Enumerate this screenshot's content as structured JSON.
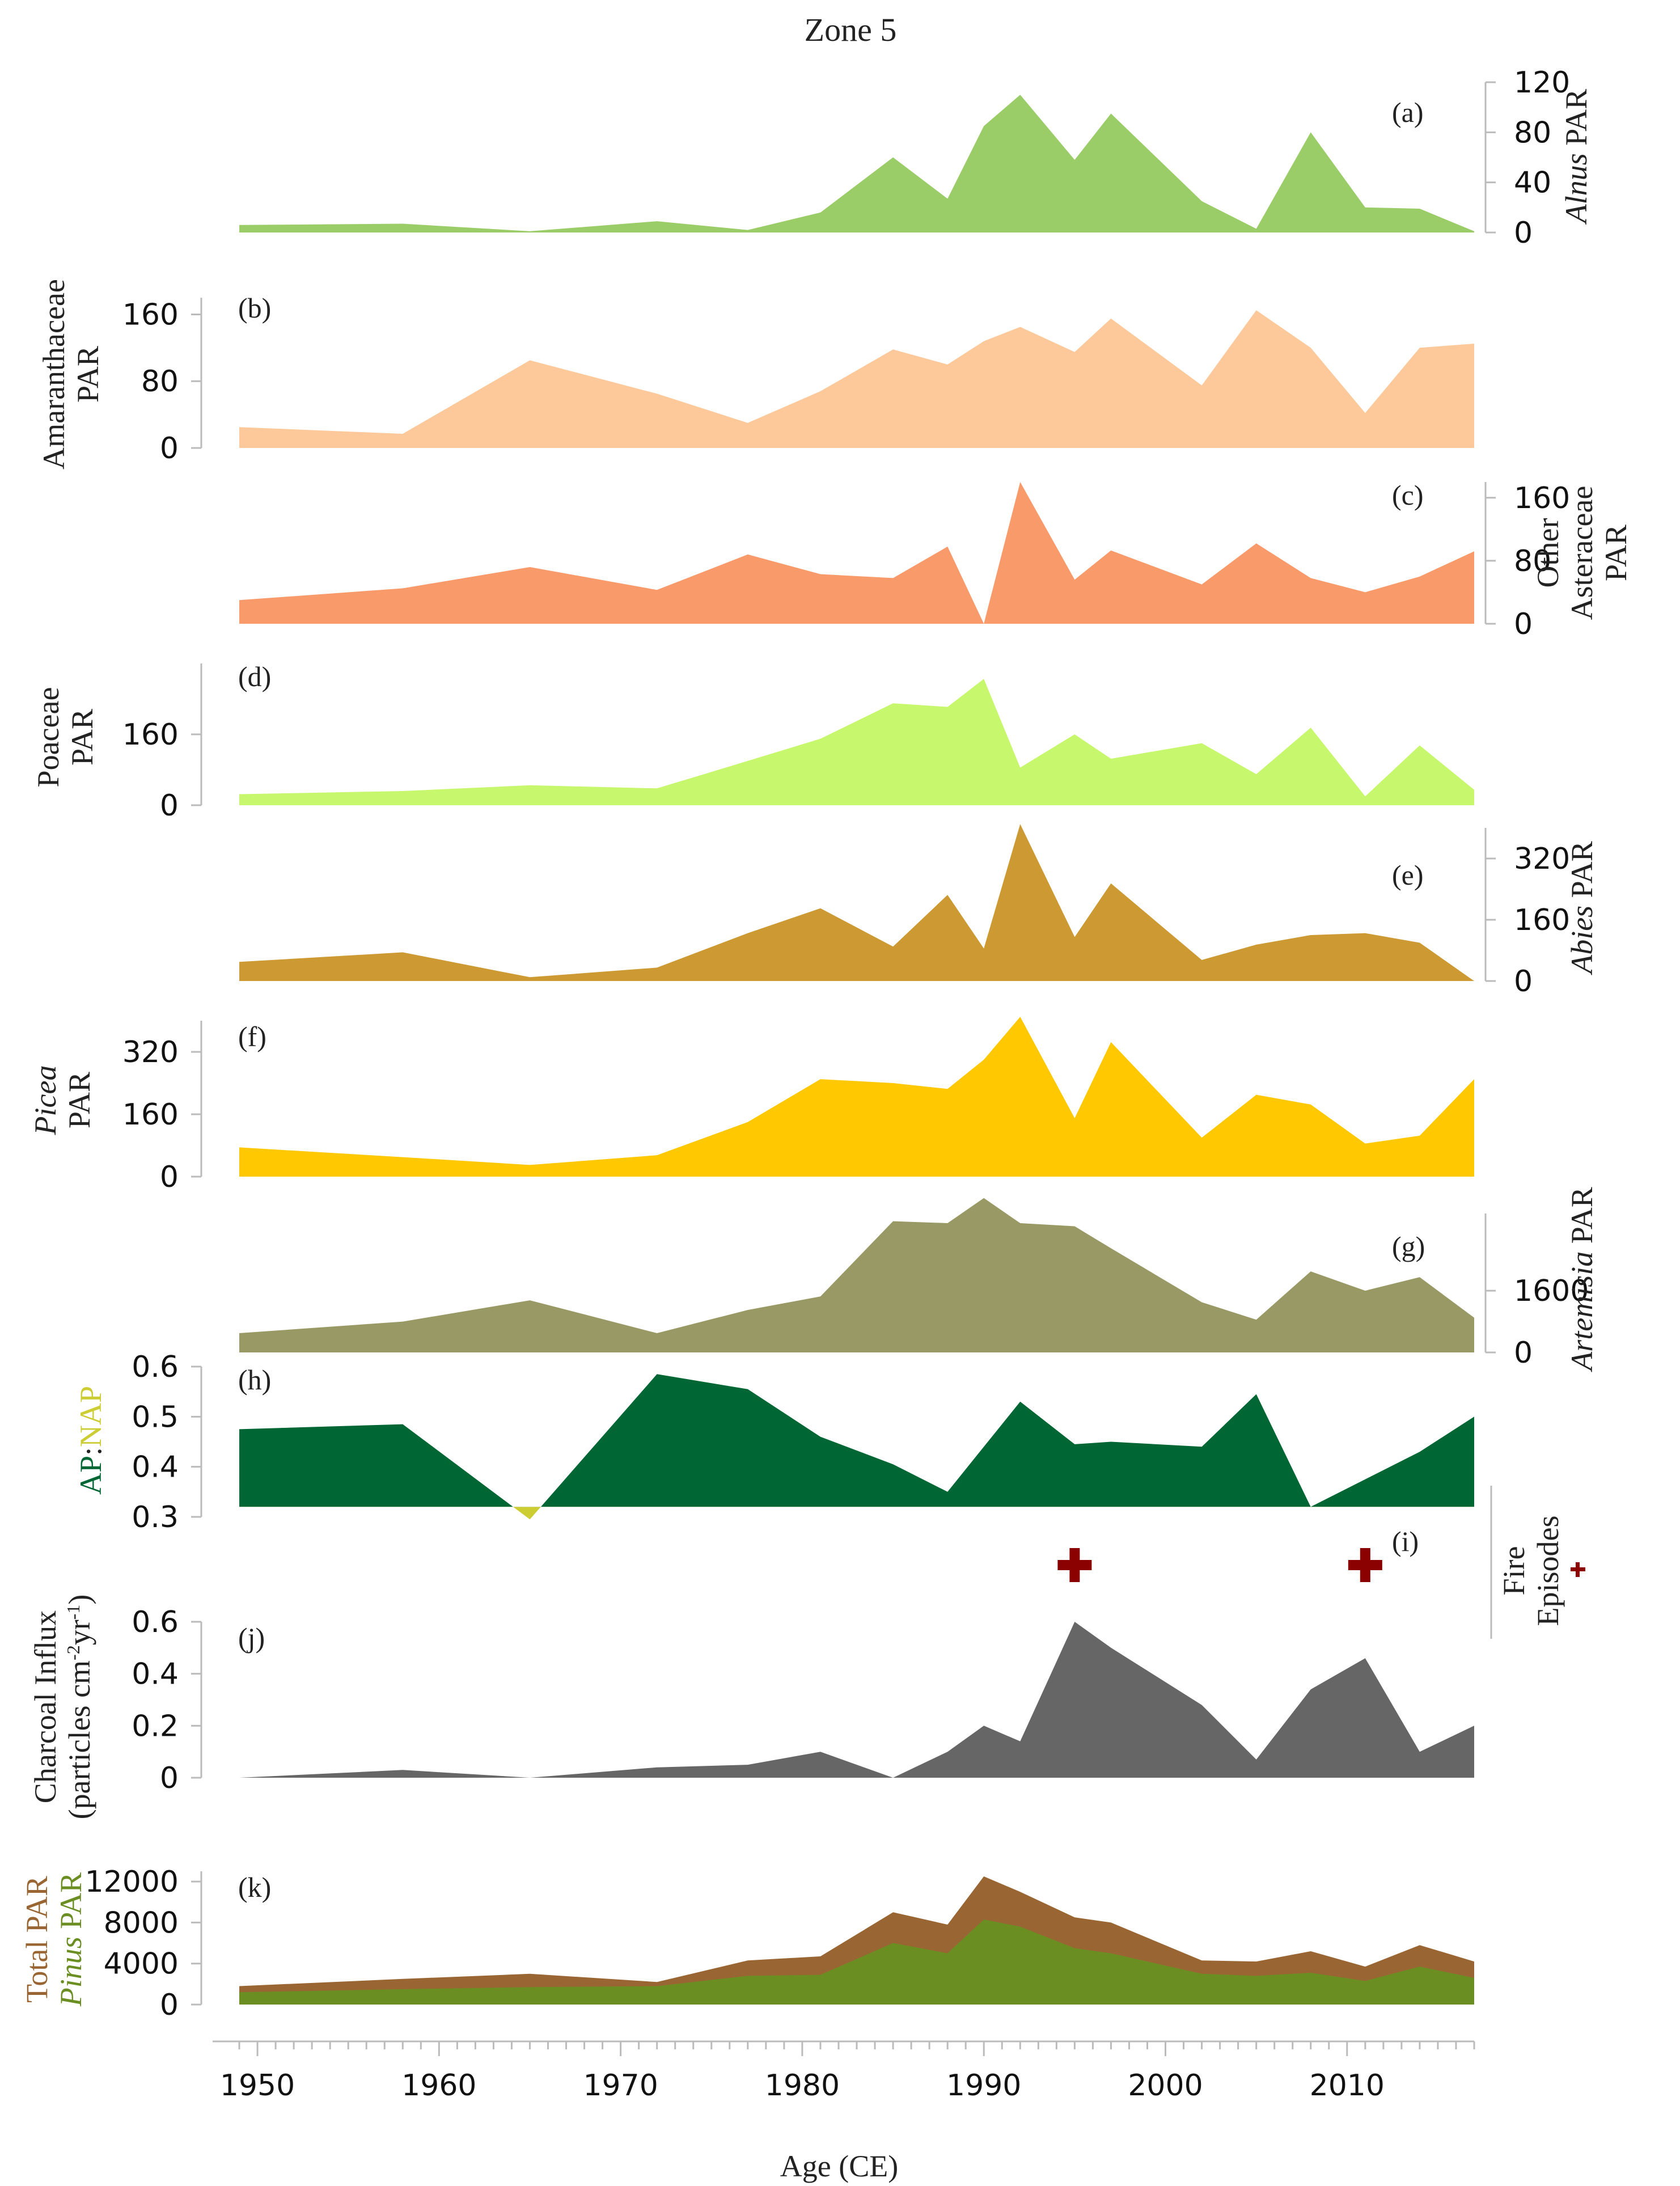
{
  "title": "Zone 5",
  "chart_data": {
    "type": "area",
    "xlabel": "Age (CE)",
    "xlim": [
      1948,
      2017
    ],
    "xticks": [
      1950,
      1960,
      1970,
      1980,
      1990,
      2000,
      2010
    ],
    "x": [
      1949,
      1958,
      1965,
      1972,
      1977,
      1981,
      1985,
      1988,
      1990,
      1992,
      1995,
      1997,
      2002,
      2005,
      2008,
      2011,
      2014,
      2017
    ],
    "panels": [
      {
        "id": "a",
        "tag": "(a)",
        "label_parts": [
          {
            "t": "Alnus",
            "i": true
          },
          {
            "t": " PAR",
            "i": false
          }
        ],
        "ylim": [
          0,
          120
        ],
        "yticks": [
          0,
          40,
          80,
          120
        ],
        "color": "#9ACD68",
        "values": [
          6,
          7,
          1,
          9,
          2,
          16,
          60,
          27,
          85,
          110,
          58,
          95,
          25,
          3,
          80,
          20,
          19,
          1
        ]
      },
      {
        "id": "b",
        "tag": "(b)",
        "label_parts": [
          {
            "t": "Amaranthaceae",
            "i": false
          },
          {
            "t": "PAR",
            "i": false
          }
        ],
        "ylim": [
          0,
          180
        ],
        "yticks": [
          0,
          80,
          160
        ],
        "color": "#FDC99A",
        "values": [
          25,
          17,
          105,
          65,
          30,
          68,
          118,
          100,
          128,
          145,
          115,
          155,
          75,
          165,
          120,
          42,
          120,
          125
        ]
      },
      {
        "id": "c",
        "tag": "(c)",
        "label_parts": [
          {
            "t": "Other",
            "i": false
          },
          {
            "t": "Asteraceae",
            "i": false
          },
          {
            "t": "PAR",
            "i": false
          }
        ],
        "ylim": [
          0,
          180
        ],
        "yticks": [
          0,
          80,
          160
        ],
        "color": "#F99A6B",
        "values": [
          30,
          45,
          72,
          43,
          88,
          63,
          58,
          98,
          0,
          180,
          56,
          93,
          50,
          102,
          58,
          40,
          60,
          92
        ]
      },
      {
        "id": "d",
        "tag": "(d)",
        "label_parts": [
          {
            "t": "Poaceae",
            "i": false
          },
          {
            "t": "PAR",
            "i": false
          }
        ],
        "ylim": [
          0,
          320
        ],
        "yticks": [
          0,
          160
        ],
        "color": "#C7F76C",
        "values": [
          25,
          32,
          45,
          38,
          100,
          150,
          230,
          222,
          285,
          85,
          160,
          105,
          140,
          70,
          175,
          20,
          135,
          35
        ]
      },
      {
        "id": "e",
        "tag": "(e)",
        "label_parts": [
          {
            "t": "Abies",
            "i": true
          },
          {
            "t": " PAR",
            "i": false
          }
        ],
        "ylim": [
          0,
          400
        ],
        "yticks": [
          0,
          160,
          320
        ],
        "color": "#CC9933",
        "values": [
          50,
          75,
          10,
          35,
          125,
          190,
          90,
          225,
          85,
          410,
          115,
          255,
          55,
          95,
          120,
          125,
          100,
          0
        ]
      },
      {
        "id": "f",
        "tag": "(f)",
        "label_parts": [
          {
            "t": "Picea",
            "i": true
          },
          {
            "t": "PAR",
            "i": false
          }
        ],
        "ylim": [
          0,
          400
        ],
        "yticks": [
          0,
          160,
          320
        ],
        "color": "#FFC800",
        "values": [
          75,
          50,
          30,
          55,
          140,
          250,
          240,
          225,
          300,
          410,
          150,
          345,
          100,
          210,
          185,
          85,
          105,
          250
        ]
      },
      {
        "id": "g",
        "tag": "(g)",
        "label_parts": [
          {
            "t": "Artemisia",
            "i": true
          },
          {
            "t": " PAR",
            "i": false
          }
        ],
        "ylim": [
          0,
          3600
        ],
        "yticks": [
          0,
          1600
        ],
        "color": "#999966",
        "values": [
          500,
          800,
          1350,
          500,
          1100,
          1450,
          3400,
          3350,
          4000,
          3350,
          3270,
          2700,
          1300,
          850,
          2100,
          1600,
          1950,
          900
        ]
      },
      {
        "id": "h",
        "tag": "(h)",
        "label_parts": [
          {
            "t": "AP",
            "i": false,
            "c": "#006633"
          },
          {
            "t": ":",
            "i": false,
            "c": "#222222"
          },
          {
            "t": "NAP",
            "i": false,
            "c": "#CCCC33"
          }
        ],
        "ylim": [
          0.3,
          0.6
        ],
        "yticks": [
          0.3,
          0.4,
          0.5,
          0.6
        ],
        "baseline": 0.32,
        "color_above": "#006633",
        "color_below": "#CCCC33",
        "values": [
          0.475,
          0.485,
          0.295,
          0.585,
          0.555,
          0.46,
          0.405,
          0.35,
          0.44,
          0.53,
          0.445,
          0.45,
          0.44,
          0.545,
          0.32,
          0.375,
          0.43,
          0.5
        ]
      },
      {
        "id": "i",
        "tag": "(i)",
        "label_parts": [
          {
            "t": "Fire",
            "i": false
          },
          {
            "t": "Episodes",
            "i": false
          }
        ],
        "type": "markers",
        "marker": "+",
        "color": "#8B0000",
        "events": [
          1995,
          2011
        ]
      },
      {
        "id": "j",
        "tag": "(j)",
        "label_parts": [
          {
            "t": "Charcoal Influx",
            "i": false
          },
          {
            "t": "(particles cm-2yr-1)",
            "i": false
          }
        ],
        "ylim": [
          0,
          0.6
        ],
        "yticks": [
          0,
          0.2,
          0.4,
          0.6
        ],
        "color": "#666666",
        "values": [
          0,
          0.03,
          0,
          0.04,
          0.05,
          0.1,
          0,
          0.1,
          0.2,
          0.14,
          0.6,
          0.5,
          0.28,
          0.07,
          0.34,
          0.46,
          0.1,
          0.2
        ]
      },
      {
        "id": "k",
        "tag": "(k)",
        "label_parts": [
          {
            "t": "Total PAR",
            "i": false,
            "c": "#996633"
          },
          {
            "t": "Pinus",
            "i": true,
            "c": "#6B8E23"
          },
          {
            "t": " PAR",
            "i": false,
            "c": "#6B8E23"
          }
        ],
        "ylim": [
          0,
          13000
        ],
        "yticks": [
          0,
          4000,
          8000,
          12000
        ],
        "series": [
          {
            "name": "Total PAR",
            "color": "#996633",
            "values": [
              1800,
              2500,
              3000,
              2200,
              4300,
              4700,
              9000,
              7800,
              12500,
              11000,
              8500,
              8000,
              4300,
              4200,
              5200,
              3700,
              5800,
              4200
            ]
          },
          {
            "name": "Pinus PAR",
            "color": "#6B8E23",
            "values": [
              1200,
              1500,
              1700,
              1800,
              2800,
              2900,
              6000,
              5000,
              8300,
              7600,
              5500,
              5000,
              3000,
              2800,
              3100,
              2300,
              3700,
              2600
            ]
          }
        ]
      }
    ],
    "legend": "per-panel y-axis labels"
  }
}
